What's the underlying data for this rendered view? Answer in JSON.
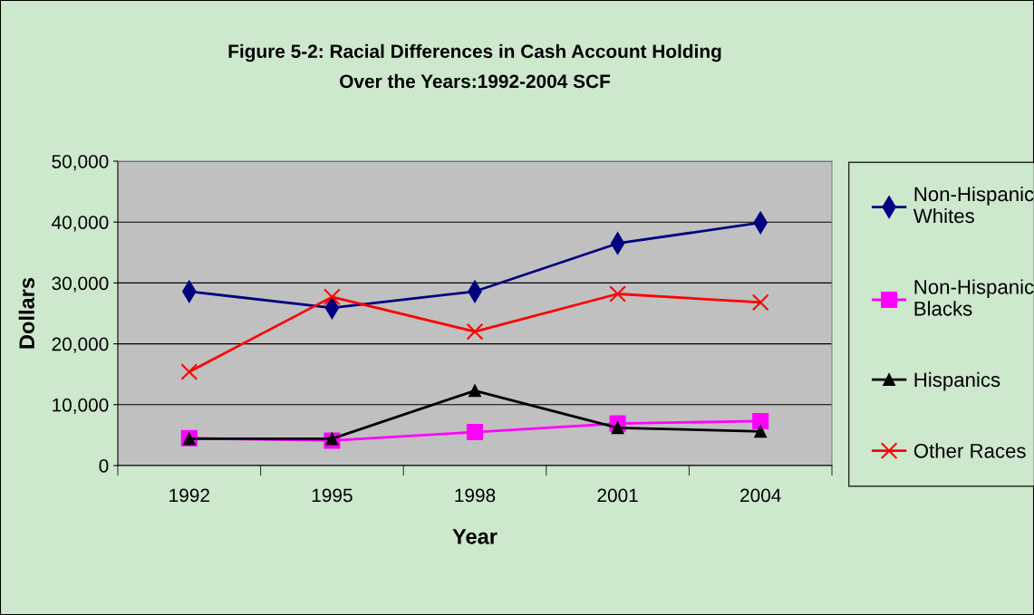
{
  "chart_data": {
    "type": "line",
    "title": "Figure 5-2: Racial Differences in Cash Account Holding\nOver the Years:1992-2004 SCF",
    "xlabel": "Year",
    "ylabel": "Dollars",
    "categories": [
      "1992",
      "1995",
      "1998",
      "2001",
      "2004"
    ],
    "series": [
      {
        "name": "Non-Hispanic\nWhites",
        "color": "#000080",
        "marker": "diamond",
        "values": [
          28600,
          25900,
          28600,
          36500,
          39900
        ]
      },
      {
        "name": "Non-Hispanic\nBlacks",
        "color": "#ff00ff",
        "marker": "square",
        "values": [
          4500,
          4100,
          5500,
          6900,
          7300
        ]
      },
      {
        "name": "Hispanics",
        "color": "#000000",
        "marker": "triangle",
        "values": [
          4400,
          4400,
          12300,
          6200,
          5600
        ]
      },
      {
        "name": "Other Races",
        "color": "#ff0000",
        "marker": "cross",
        "values": [
          15400,
          27700,
          22000,
          28200,
          26800
        ]
      }
    ],
    "ylim": [
      0,
      50000
    ],
    "yticks": [
      0,
      {
        "value": 10000,
        "label": "10,000"
      },
      {
        "value": 20000,
        "label": "20,000"
      },
      {
        "value": 30000,
        "label": "30,000"
      },
      {
        "value": 40000,
        "label": "40,000"
      },
      {
        "value": 50000,
        "label": "50,000"
      }
    ],
    "grid": "y",
    "legend": "right",
    "line_style": "solid"
  }
}
